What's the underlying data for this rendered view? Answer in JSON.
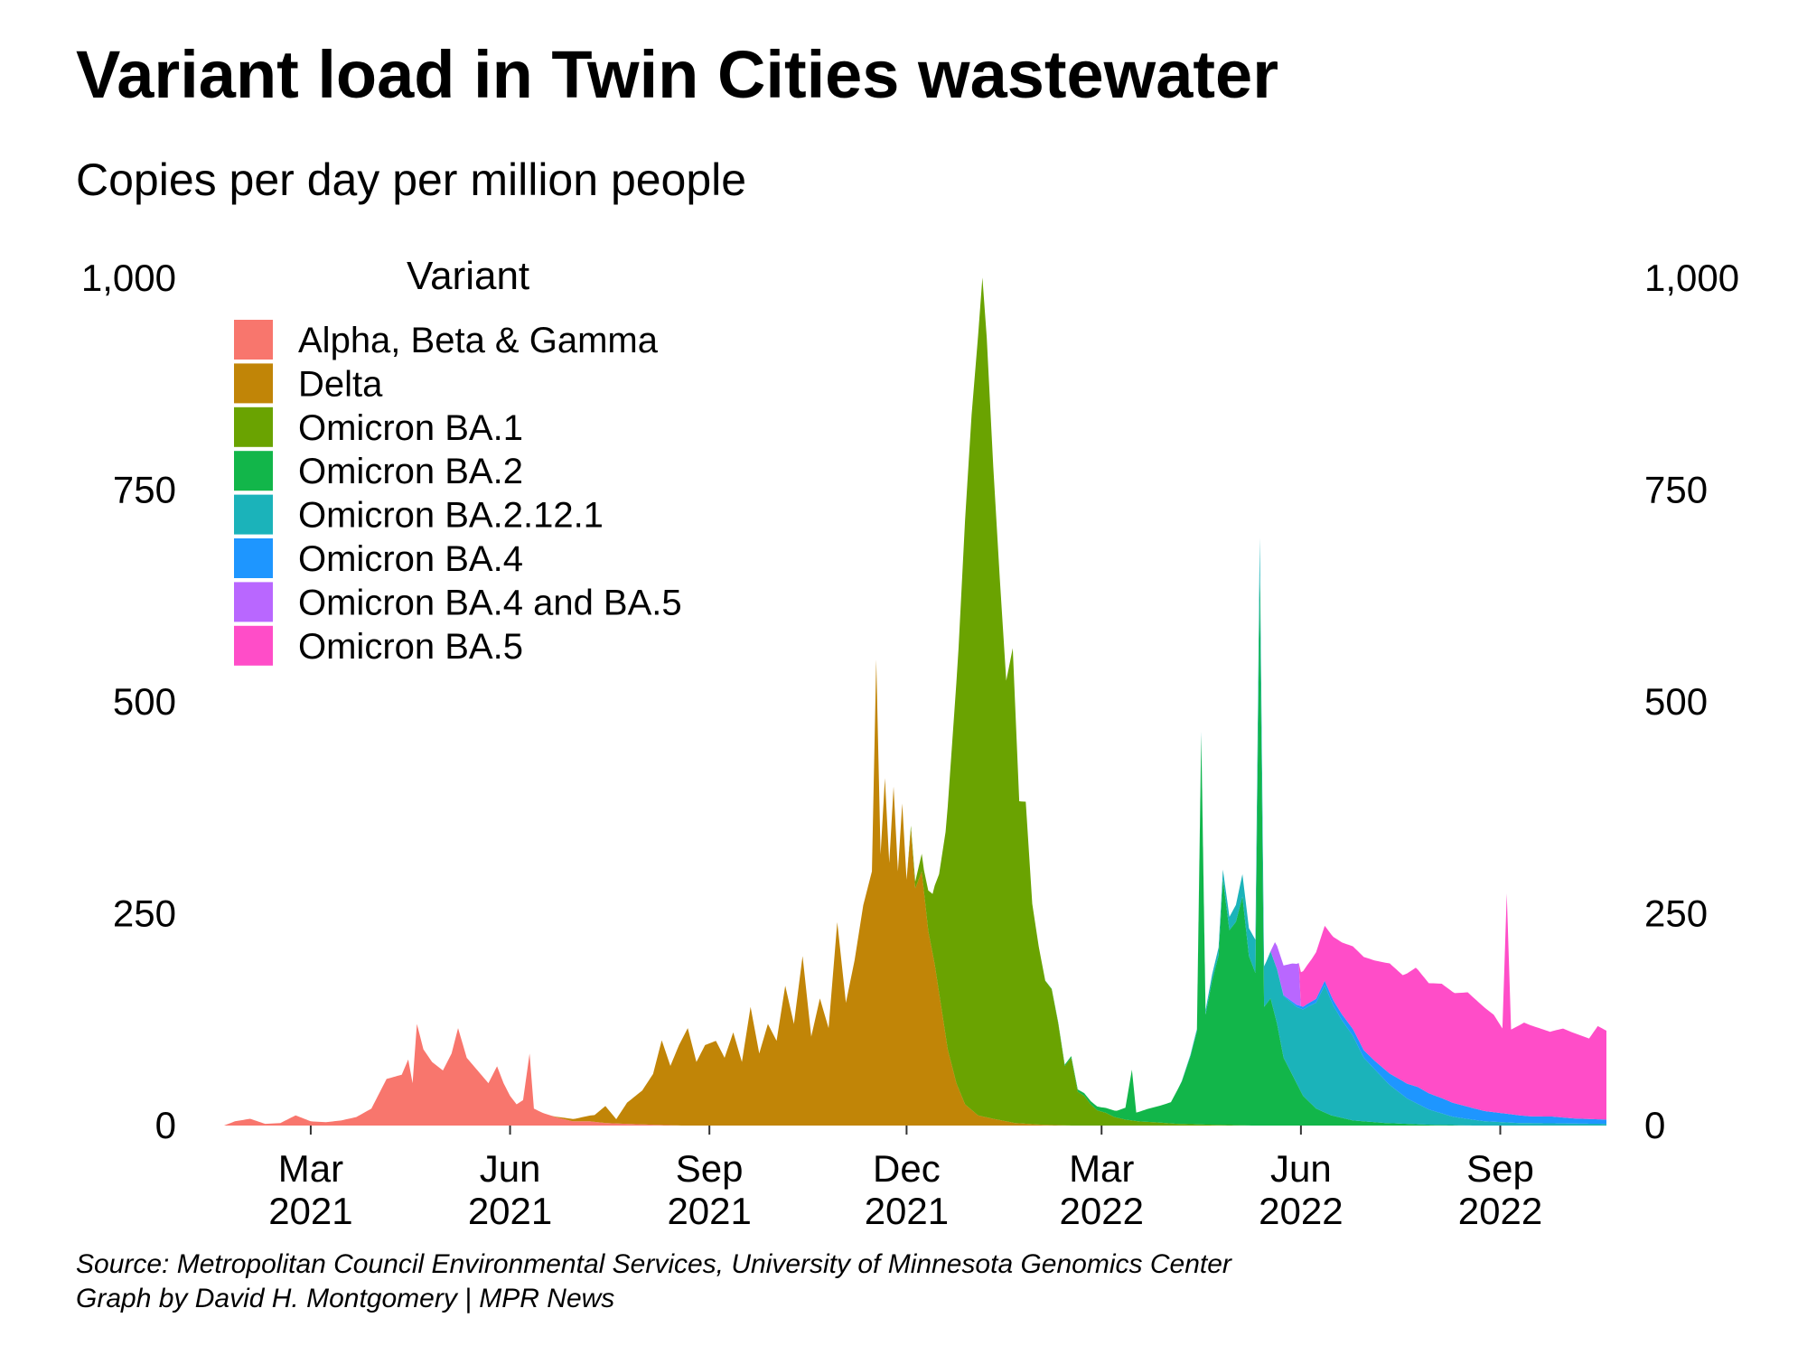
{
  "title": "Variant load in Twin Cities wastewater",
  "subtitle": "Copies per day per million people",
  "caption": {
    "source": "Source: Metropolitan Council Environmental Services, University of Minnesota Genomics Center",
    "credit": "Graph by David H. Montgomery | MPR News"
  },
  "chart_data": {
    "type": "area",
    "stacked": true,
    "title": "Variant load in Twin Cities wastewater",
    "subtitle": "Copies per day per million people",
    "ylim": [
      0,
      1000
    ],
    "y_ticks": [
      0,
      250,
      500,
      750,
      1000
    ],
    "y_tick_labels": [
      "0",
      "250",
      "500",
      "750",
      "1,000"
    ],
    "y_axis_both_sides": true,
    "xlim": [
      "2021-01-20",
      "2022-10-20"
    ],
    "x_ticks": [
      {
        "date": "2021-03-01",
        "line1": "Mar",
        "line2": "2021"
      },
      {
        "date": "2021-06-01",
        "line1": "Jun",
        "line2": "2021"
      },
      {
        "date": "2021-09-01",
        "line1": "Sep",
        "line2": "2021"
      },
      {
        "date": "2021-12-01",
        "line1": "Dec",
        "line2": "2021"
      },
      {
        "date": "2022-03-01",
        "line1": "Mar",
        "line2": "2022"
      },
      {
        "date": "2022-06-01",
        "line1": "Jun",
        "line2": "2022"
      },
      {
        "date": "2022-09-01",
        "line1": "Sep",
        "line2": "2022"
      }
    ],
    "legend_title": "Variant",
    "legend_position": "top-left",
    "grid": false,
    "series": [
      {
        "name": "Alpha, Beta & Gamma",
        "color": "#F8766D",
        "points": [
          [
            "2021-01-20",
            0
          ],
          [
            "2021-01-25",
            5
          ],
          [
            "2021-02-01",
            8
          ],
          [
            "2021-02-08",
            2
          ],
          [
            "2021-02-15",
            3
          ],
          [
            "2021-02-22",
            12
          ],
          [
            "2021-03-01",
            5
          ],
          [
            "2021-03-08",
            4
          ],
          [
            "2021-03-15",
            6
          ],
          [
            "2021-03-22",
            10
          ],
          [
            "2021-03-29",
            20
          ],
          [
            "2021-04-05",
            55
          ],
          [
            "2021-04-12",
            60
          ],
          [
            "2021-04-15",
            78
          ],
          [
            "2021-04-17",
            50
          ],
          [
            "2021-04-19",
            120
          ],
          [
            "2021-04-22",
            90
          ],
          [
            "2021-04-26",
            75
          ],
          [
            "2021-05-01",
            65
          ],
          [
            "2021-05-05",
            85
          ],
          [
            "2021-05-08",
            115
          ],
          [
            "2021-05-12",
            80
          ],
          [
            "2021-05-17",
            65
          ],
          [
            "2021-05-22",
            50
          ],
          [
            "2021-05-26",
            70
          ],
          [
            "2021-05-29",
            50
          ],
          [
            "2021-06-01",
            35
          ],
          [
            "2021-06-04",
            25
          ],
          [
            "2021-06-07",
            30
          ],
          [
            "2021-06-10",
            85
          ],
          [
            "2021-06-12",
            20
          ],
          [
            "2021-06-16",
            15
          ],
          [
            "2021-06-22",
            10
          ],
          [
            "2021-06-30",
            5
          ],
          [
            "2021-07-08",
            5
          ],
          [
            "2021-07-15",
            3
          ],
          [
            "2021-07-25",
            2
          ],
          [
            "2021-08-05",
            1
          ],
          [
            "2021-08-20",
            0
          ],
          [
            "2022-10-20",
            0
          ]
        ]
      },
      {
        "name": "Delta",
        "color": "#C18507",
        "points": [
          [
            "2021-01-20",
            0
          ],
          [
            "2021-06-20",
            0
          ],
          [
            "2021-07-01",
            3
          ],
          [
            "2021-07-10",
            8
          ],
          [
            "2021-07-15",
            20
          ],
          [
            "2021-07-20",
            5
          ],
          [
            "2021-07-25",
            25
          ],
          [
            "2021-08-01",
            40
          ],
          [
            "2021-08-06",
            60
          ],
          [
            "2021-08-10",
            100
          ],
          [
            "2021-08-14",
            70
          ],
          [
            "2021-08-18",
            95
          ],
          [
            "2021-08-22",
            115
          ],
          [
            "2021-08-26",
            75
          ],
          [
            "2021-08-30",
            95
          ],
          [
            "2021-09-04",
            100
          ],
          [
            "2021-09-08",
            80
          ],
          [
            "2021-09-12",
            110
          ],
          [
            "2021-09-16",
            75
          ],
          [
            "2021-09-20",
            140
          ],
          [
            "2021-09-24",
            85
          ],
          [
            "2021-09-28",
            120
          ],
          [
            "2021-10-02",
            100
          ],
          [
            "2021-10-06",
            165
          ],
          [
            "2021-10-10",
            120
          ],
          [
            "2021-10-14",
            200
          ],
          [
            "2021-10-18",
            105
          ],
          [
            "2021-10-22",
            150
          ],
          [
            "2021-10-26",
            115
          ],
          [
            "2021-10-30",
            240
          ],
          [
            "2021-11-03",
            145
          ],
          [
            "2021-11-07",
            195
          ],
          [
            "2021-11-11",
            260
          ],
          [
            "2021-11-15",
            300
          ],
          [
            "2021-11-17",
            550
          ],
          [
            "2021-11-19",
            320
          ],
          [
            "2021-11-21",
            410
          ],
          [
            "2021-11-23",
            310
          ],
          [
            "2021-11-25",
            400
          ],
          [
            "2021-11-27",
            300
          ],
          [
            "2021-11-29",
            380
          ],
          [
            "2021-12-01",
            290
          ],
          [
            "2021-12-03",
            350
          ],
          [
            "2021-12-05",
            280
          ],
          [
            "2021-12-08",
            300
          ],
          [
            "2021-12-11",
            230
          ],
          [
            "2021-12-14",
            190
          ],
          [
            "2021-12-17",
            140
          ],
          [
            "2021-12-20",
            90
          ],
          [
            "2021-12-24",
            50
          ],
          [
            "2021-12-28",
            25
          ],
          [
            "2022-01-03",
            12
          ],
          [
            "2022-01-10",
            8
          ],
          [
            "2022-01-20",
            3
          ],
          [
            "2022-02-01",
            1
          ],
          [
            "2022-02-15",
            0
          ],
          [
            "2022-10-20",
            0
          ]
        ]
      },
      {
        "name": "Omicron BA.1",
        "color": "#6AA301",
        "points": [
          [
            "2021-01-20",
            0
          ],
          [
            "2021-12-01",
            0
          ],
          [
            "2021-12-05",
            8
          ],
          [
            "2021-12-09",
            25
          ],
          [
            "2021-12-13",
            70
          ],
          [
            "2021-12-16",
            140
          ],
          [
            "2021-12-19",
            240
          ],
          [
            "2021-12-22",
            380
          ],
          [
            "2021-12-25",
            520
          ],
          [
            "2021-12-28",
            690
          ],
          [
            "2021-12-31",
            820
          ],
          [
            "2022-01-03",
            920
          ],
          [
            "2022-01-05",
            990
          ],
          [
            "2022-01-07",
            920
          ],
          [
            "2022-01-10",
            770
          ],
          [
            "2022-01-13",
            640
          ],
          [
            "2022-01-16",
            520
          ],
          [
            "2022-01-19",
            560
          ],
          [
            "2022-01-22",
            380
          ],
          [
            "2022-01-25",
            380
          ],
          [
            "2022-01-28",
            260
          ],
          [
            "2022-01-31",
            210
          ],
          [
            "2022-02-03",
            170
          ],
          [
            "2022-02-06",
            160
          ],
          [
            "2022-02-09",
            120
          ],
          [
            "2022-02-12",
            70
          ],
          [
            "2022-02-15",
            80
          ],
          [
            "2022-02-18",
            40
          ],
          [
            "2022-02-21",
            35
          ],
          [
            "2022-02-24",
            25
          ],
          [
            "2022-02-27",
            18
          ],
          [
            "2022-03-03",
            15
          ],
          [
            "2022-03-07",
            10
          ],
          [
            "2022-03-12",
            7
          ],
          [
            "2022-03-18",
            5
          ],
          [
            "2022-03-25",
            4
          ],
          [
            "2022-04-05",
            2
          ],
          [
            "2022-04-20",
            1
          ],
          [
            "2022-05-10",
            0
          ],
          [
            "2022-10-20",
            0
          ]
        ]
      },
      {
        "name": "Omicron BA.2",
        "color": "#12B64A",
        "points": [
          [
            "2021-01-20",
            0
          ],
          [
            "2022-02-01",
            0
          ],
          [
            "2022-02-15",
            2
          ],
          [
            "2022-02-25",
            4
          ],
          [
            "2022-03-01",
            5
          ],
          [
            "2022-03-08",
            8
          ],
          [
            "2022-03-12",
            14
          ],
          [
            "2022-03-15",
            60
          ],
          [
            "2022-03-17",
            10
          ],
          [
            "2022-03-22",
            15
          ],
          [
            "2022-03-28",
            20
          ],
          [
            "2022-04-02",
            25
          ],
          [
            "2022-04-07",
            50
          ],
          [
            "2022-04-11",
            80
          ],
          [
            "2022-04-14",
            110
          ],
          [
            "2022-04-16",
            460
          ],
          [
            "2022-04-18",
            130
          ],
          [
            "2022-04-21",
            170
          ],
          [
            "2022-04-24",
            200
          ],
          [
            "2022-04-26",
            290
          ],
          [
            "2022-04-29",
            230
          ],
          [
            "2022-05-02",
            240
          ],
          [
            "2022-05-05",
            270
          ],
          [
            "2022-05-08",
            200
          ],
          [
            "2022-05-11",
            180
          ],
          [
            "2022-05-13",
            650
          ],
          [
            "2022-05-15",
            140
          ],
          [
            "2022-05-18",
            150
          ],
          [
            "2022-05-21",
            120
          ],
          [
            "2022-05-24",
            80
          ],
          [
            "2022-05-28",
            60
          ],
          [
            "2022-06-02",
            35
          ],
          [
            "2022-06-08",
            20
          ],
          [
            "2022-06-15",
            12
          ],
          [
            "2022-06-25",
            6
          ],
          [
            "2022-07-10",
            3
          ],
          [
            "2022-07-30",
            1
          ],
          [
            "2022-08-20",
            0
          ],
          [
            "2022-10-20",
            0
          ]
        ]
      },
      {
        "name": "Omicron BA.2.12.1",
        "color": "#1BB3BA",
        "points": [
          [
            "2021-01-20",
            0
          ],
          [
            "2022-04-05",
            0
          ],
          [
            "2022-04-15",
            3
          ],
          [
            "2022-04-25",
            10
          ],
          [
            "2022-05-02",
            20
          ],
          [
            "2022-05-09",
            35
          ],
          [
            "2022-05-16",
            50
          ],
          [
            "2022-05-23",
            70
          ],
          [
            "2022-05-30",
            90
          ],
          [
            "2022-06-04",
            110
          ],
          [
            "2022-06-08",
            125
          ],
          [
            "2022-06-12",
            150
          ],
          [
            "2022-06-16",
            130
          ],
          [
            "2022-06-20",
            115
          ],
          [
            "2022-06-25",
            100
          ],
          [
            "2022-06-30",
            75
          ],
          [
            "2022-07-06",
            60
          ],
          [
            "2022-07-12",
            45
          ],
          [
            "2022-07-20",
            30
          ],
          [
            "2022-07-30",
            18
          ],
          [
            "2022-08-10",
            10
          ],
          [
            "2022-08-25",
            5
          ],
          [
            "2022-09-10",
            3
          ],
          [
            "2022-10-20",
            2
          ]
        ]
      },
      {
        "name": "Omicron BA.4",
        "color": "#1E96FF",
        "points": [
          [
            "2021-01-20",
            0
          ],
          [
            "2022-05-20",
            0
          ],
          [
            "2022-06-01",
            3
          ],
          [
            "2022-06-15",
            6
          ],
          [
            "2022-06-25",
            8
          ],
          [
            "2022-07-05",
            10
          ],
          [
            "2022-07-15",
            15
          ],
          [
            "2022-07-25",
            20
          ],
          [
            "2022-08-05",
            18
          ],
          [
            "2022-08-15",
            15
          ],
          [
            "2022-08-25",
            12
          ],
          [
            "2022-09-05",
            10
          ],
          [
            "2022-09-15",
            8
          ],
          [
            "2022-09-25",
            8
          ],
          [
            "2022-10-05",
            6
          ],
          [
            "2022-10-20",
            5
          ]
        ]
      },
      {
        "name": "Omicron BA.4 and BA.5",
        "color": "#B967FF",
        "points": [
          [
            "2021-01-20",
            0
          ],
          [
            "2022-05-18",
            0
          ],
          [
            "2022-05-20",
            25
          ],
          [
            "2022-05-24",
            35
          ],
          [
            "2022-05-28",
            45
          ],
          [
            "2022-05-31",
            50
          ],
          [
            "2022-06-01",
            0
          ],
          [
            "2022-10-20",
            0
          ]
        ]
      },
      {
        "name": "Omicron BA.5",
        "color": "#FF4DC8",
        "points": [
          [
            "2021-01-20",
            0
          ],
          [
            "2022-05-31",
            0
          ],
          [
            "2022-06-01",
            40
          ],
          [
            "2022-06-06",
            50
          ],
          [
            "2022-06-12",
            65
          ],
          [
            "2022-06-18",
            80
          ],
          [
            "2022-06-24",
            95
          ],
          [
            "2022-06-30",
            110
          ],
          [
            "2022-07-06",
            120
          ],
          [
            "2022-07-12",
            130
          ],
          [
            "2022-07-18",
            125
          ],
          [
            "2022-07-24",
            140
          ],
          [
            "2022-07-30",
            130
          ],
          [
            "2022-08-05",
            135
          ],
          [
            "2022-08-11",
            130
          ],
          [
            "2022-08-17",
            135
          ],
          [
            "2022-08-23",
            125
          ],
          [
            "2022-08-29",
            115
          ],
          [
            "2022-09-02",
            100
          ],
          [
            "2022-09-04",
            260
          ],
          [
            "2022-09-06",
            100
          ],
          [
            "2022-09-12",
            110
          ],
          [
            "2022-09-18",
            105
          ],
          [
            "2022-09-24",
            100
          ],
          [
            "2022-09-30",
            105
          ],
          [
            "2022-10-06",
            100
          ],
          [
            "2022-10-12",
            95
          ],
          [
            "2022-10-16",
            110
          ],
          [
            "2022-10-20",
            105
          ]
        ]
      }
    ]
  }
}
